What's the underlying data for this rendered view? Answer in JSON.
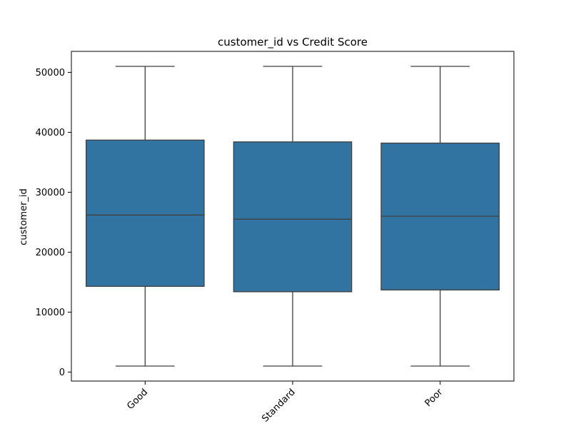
{
  "chart_data": {
    "type": "box",
    "title": "customer_id vs Credit Score",
    "xlabel": "",
    "ylabel": "customer_id",
    "categories": [
      "Good",
      "Standard",
      "Poor"
    ],
    "boxes": [
      {
        "category": "Good",
        "whisker_low": 1000,
        "q1": 14300,
        "median": 26200,
        "q3": 38700,
        "whisker_high": 51000
      },
      {
        "category": "Standard",
        "whisker_low": 1000,
        "q1": 13400,
        "median": 25500,
        "q3": 38400,
        "whisker_high": 51000
      },
      {
        "category": "Poor",
        "whisker_low": 1000,
        "q1": 13700,
        "median": 26000,
        "q3": 38200,
        "whisker_high": 51000
      }
    ],
    "ylim": [
      -1500,
      53500
    ],
    "yticks": [
      0,
      10000,
      20000,
      30000,
      40000,
      50000
    ],
    "ytick_labels": [
      "0",
      "10000",
      "20000",
      "30000",
      "40000",
      "50000"
    ],
    "grid": false,
    "colors": {
      "box_fill": "#3274a1",
      "line": "#3f3f3f",
      "axis": "#000000"
    }
  }
}
